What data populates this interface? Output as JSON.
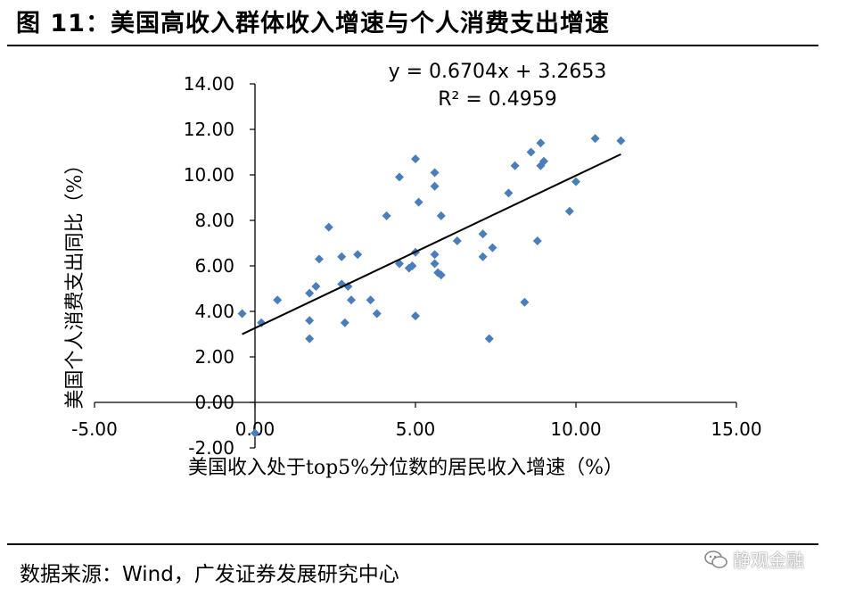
{
  "title": "图 11：美国高收入群体收入增速与个人消费支出增速",
  "source": "数据来源：Wind，广发证券发展研究中心",
  "watermark": "静观金融",
  "watermark_icon": "wechat-icon",
  "colors": {
    "marker": "#4a7ebb",
    "trendline": "#000000",
    "axis": "#000000"
  },
  "chart_data": {
    "type": "scatter",
    "xlabel": "美国收入处于top5%分位数的居民收入增速（%）",
    "ylabel": "美国个人消费支出同比（%）",
    "xlim": [
      -5,
      15
    ],
    "ylim": [
      -2,
      14
    ],
    "xticks": [
      -5,
      0,
      5,
      10,
      15
    ],
    "yticks": [
      -2,
      0,
      2,
      4,
      6,
      8,
      10,
      12,
      14
    ],
    "xtick_labels": [
      "-5.00",
      "0.00",
      "5.00",
      "10.00",
      "15.00"
    ],
    "ytick_labels": [
      "-2.00",
      "0.00",
      "2.00",
      "4.00",
      "6.00",
      "8.00",
      "10.00",
      "12.00",
      "14.00"
    ],
    "grid": false,
    "trendline": {
      "equation": "y = 0.6704x + 3.2653",
      "r2": "R² = 0.4959",
      "slope": 0.6704,
      "intercept": 3.2653,
      "x_range": [
        -0.4,
        11.4
      ]
    },
    "points": [
      [
        -0.4,
        3.9
      ],
      [
        0.0,
        -1.35
      ],
      [
        0.2,
        3.5
      ],
      [
        0.7,
        4.5
      ],
      [
        1.7,
        2.8
      ],
      [
        1.7,
        3.6
      ],
      [
        1.7,
        4.8
      ],
      [
        1.9,
        5.1
      ],
      [
        2.0,
        6.3
      ],
      [
        2.3,
        7.7
      ],
      [
        2.7,
        6.4
      ],
      [
        2.7,
        5.2
      ],
      [
        2.8,
        3.5
      ],
      [
        2.9,
        5.1
      ],
      [
        3.0,
        4.5
      ],
      [
        3.2,
        6.5
      ],
      [
        3.6,
        4.5
      ],
      [
        3.8,
        3.9
      ],
      [
        4.1,
        8.2
      ],
      [
        4.5,
        9.9
      ],
      [
        4.5,
        6.1
      ],
      [
        4.8,
        5.9
      ],
      [
        4.9,
        6.0
      ],
      [
        5.0,
        6.6
      ],
      [
        5.0,
        10.7
      ],
      [
        5.0,
        3.8
      ],
      [
        5.1,
        8.8
      ],
      [
        5.6,
        10.1
      ],
      [
        5.6,
        9.5
      ],
      [
        5.6,
        6.5
      ],
      [
        5.6,
        6.1
      ],
      [
        5.7,
        5.7
      ],
      [
        5.8,
        8.2
      ],
      [
        5.8,
        5.6
      ],
      [
        6.3,
        7.1
      ],
      [
        7.1,
        7.4
      ],
      [
        7.1,
        6.4
      ],
      [
        7.3,
        2.8
      ],
      [
        7.4,
        6.8
      ],
      [
        7.9,
        9.2
      ],
      [
        8.1,
        10.4
      ],
      [
        8.4,
        4.4
      ],
      [
        8.6,
        11.0
      ],
      [
        8.8,
        7.1
      ],
      [
        8.9,
        11.4
      ],
      [
        8.9,
        10.4
      ],
      [
        9.0,
        10.6
      ],
      [
        9.8,
        8.4
      ],
      [
        10.0,
        9.7
      ],
      [
        10.6,
        11.6
      ],
      [
        11.4,
        11.5
      ]
    ]
  }
}
